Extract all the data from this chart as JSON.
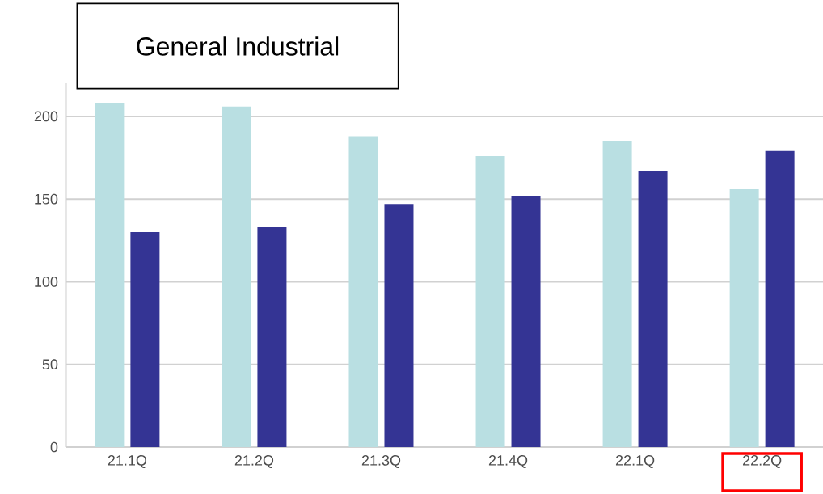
{
  "chart_data": {
    "type": "bar",
    "title": "General Industrial",
    "categories": [
      "21.1Q",
      "21.2Q",
      "21.3Q",
      "21.4Q",
      "22.1Q",
      "22.2Q"
    ],
    "series": [
      {
        "color": "#b9dfe2",
        "values": [
          208,
          206,
          188,
          176,
          185,
          156
        ]
      },
      {
        "color": "#343494",
        "values": [
          130,
          133,
          147,
          152,
          167,
          179
        ]
      }
    ],
    "ylim": [
      0,
      220
    ],
    "yticks": [
      0,
      50,
      100,
      150,
      200
    ],
    "grid": "y"
  }
}
